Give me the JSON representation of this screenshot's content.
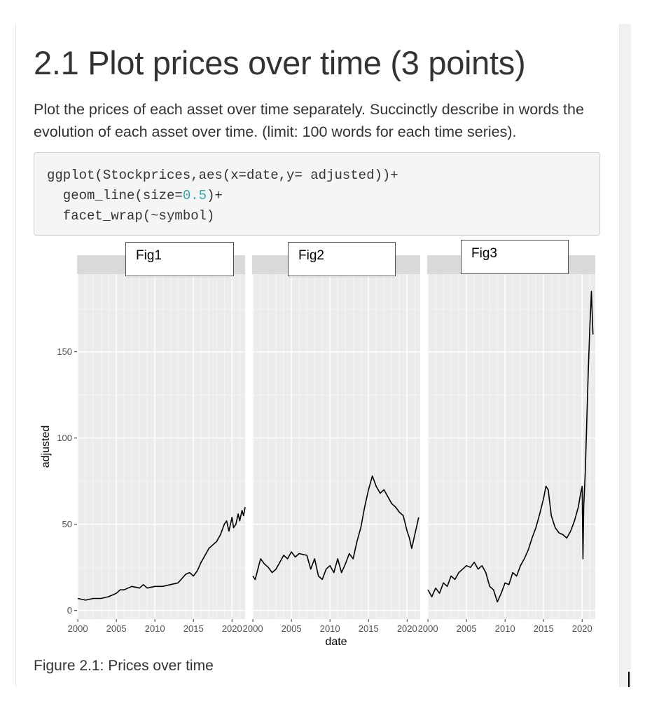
{
  "heading": "2.1 Plot prices over time (3 points)",
  "intro": "Plot the prices of each asset over time separately. Succinctly describe in words the evolution of each asset over time. (limit: 100 words for each time series).",
  "code": {
    "line1": "ggplot(Stockprices,aes(x=date,y= adjusted))+",
    "line2_pre": "  geom_line(size=",
    "line2_num": "0.5",
    "line2_post": ")+",
    "line3": "  facet_wrap(~symbol)"
  },
  "fig_labels": [
    "Fig1",
    "Fig2",
    "Fig3"
  ],
  "caption": "Figure 2.1: Prices over time",
  "chart_data": {
    "type": "line",
    "facets": [
      {
        "name": "Fig1",
        "x": [
          2000.0,
          2001.0,
          2002.0,
          2003.0,
          2004.0,
          2005.0,
          2005.5,
          2006.0,
          2007.0,
          2008.0,
          2008.5,
          2009.0,
          2010.0,
          2011.0,
          2012.0,
          2013.0,
          2014.0,
          2014.5,
          2015.0,
          2015.5,
          2016.0,
          2016.5,
          2017.0,
          2017.5,
          2018.0,
          2018.5,
          2019.0,
          2019.3,
          2019.6,
          2020.0,
          2020.2,
          2020.5,
          2020.8,
          2021.0,
          2021.3,
          2021.5,
          2021.7
        ],
        "y": [
          7,
          6,
          7,
          7,
          8,
          10,
          12,
          12,
          14,
          13,
          15,
          13,
          14,
          14,
          15,
          16,
          21,
          22,
          20,
          23,
          28,
          32,
          36,
          38,
          40,
          44,
          50,
          52,
          46,
          54,
          48,
          50,
          56,
          52,
          58,
          55,
          60
        ]
      },
      {
        "name": "Fig2",
        "x": [
          2000.0,
          2000.3,
          2001.0,
          2001.5,
          2002.0,
          2002.5,
          2003.0,
          2003.5,
          2004.0,
          2004.5,
          2005.0,
          2005.5,
          2006.0,
          2007.0,
          2007.5,
          2008.0,
          2008.5,
          2009.0,
          2009.5,
          2010.0,
          2010.5,
          2011.0,
          2011.5,
          2012.0,
          2012.5,
          2013.0,
          2013.5,
          2014.0,
          2014.5,
          2015.0,
          2015.5,
          2016.0,
          2016.5,
          2017.0,
          2017.5,
          2018.0,
          2018.5,
          2019.0,
          2019.5,
          2020.0,
          2020.3,
          2020.6,
          2021.0,
          2021.5
        ],
        "y": [
          20,
          18,
          30,
          27,
          25,
          22,
          24,
          28,
          32,
          30,
          34,
          31,
          33,
          32,
          24,
          30,
          20,
          18,
          24,
          26,
          22,
          30,
          22,
          27,
          33,
          30,
          40,
          48,
          60,
          70,
          78,
          72,
          68,
          70,
          66,
          62,
          60,
          57,
          55,
          46,
          42,
          36,
          44,
          54
        ]
      },
      {
        "name": "Fig3",
        "x": [
          2000.0,
          2000.5,
          2001.0,
          2001.5,
          2002.0,
          2002.5,
          2003.0,
          2003.5,
          2004.0,
          2004.5,
          2005.0,
          2005.5,
          2006.0,
          2006.5,
          2007.0,
          2007.5,
          2008.0,
          2008.5,
          2009.0,
          2009.5,
          2010.0,
          2010.5,
          2011.0,
          2011.5,
          2012.0,
          2012.5,
          2013.0,
          2013.5,
          2014.0,
          2014.5,
          2015.0,
          2015.3,
          2015.6,
          2016.0,
          2016.5,
          2017.0,
          2017.5,
          2018.0,
          2018.5,
          2019.0,
          2019.5,
          2019.8,
          2020.0,
          2020.1,
          2020.2,
          2020.4,
          2020.6,
          2020.8,
          2021.0,
          2021.2,
          2021.4
        ],
        "y": [
          12,
          8,
          13,
          10,
          16,
          14,
          20,
          18,
          22,
          24,
          26,
          25,
          28,
          24,
          26,
          22,
          14,
          12,
          5,
          10,
          16,
          15,
          22,
          20,
          26,
          30,
          35,
          42,
          48,
          56,
          65,
          72,
          70,
          55,
          48,
          45,
          44,
          42,
          46,
          52,
          60,
          68,
          72,
          30,
          60,
          80,
          110,
          140,
          165,
          185,
          160
        ]
      }
    ],
    "xlabel": "date",
    "ylabel": "adjusted",
    "xticks": [
      2000,
      2005,
      2010,
      2015,
      2020
    ],
    "yticks": [
      0,
      50,
      100,
      150
    ],
    "xlim": [
      1999.9,
      2021.7
    ],
    "ylim": [
      -5,
      195
    ],
    "grid": true,
    "panel_color": "#ebebeb",
    "strip_color": "#d9d9d9",
    "line_color": "#000000"
  }
}
